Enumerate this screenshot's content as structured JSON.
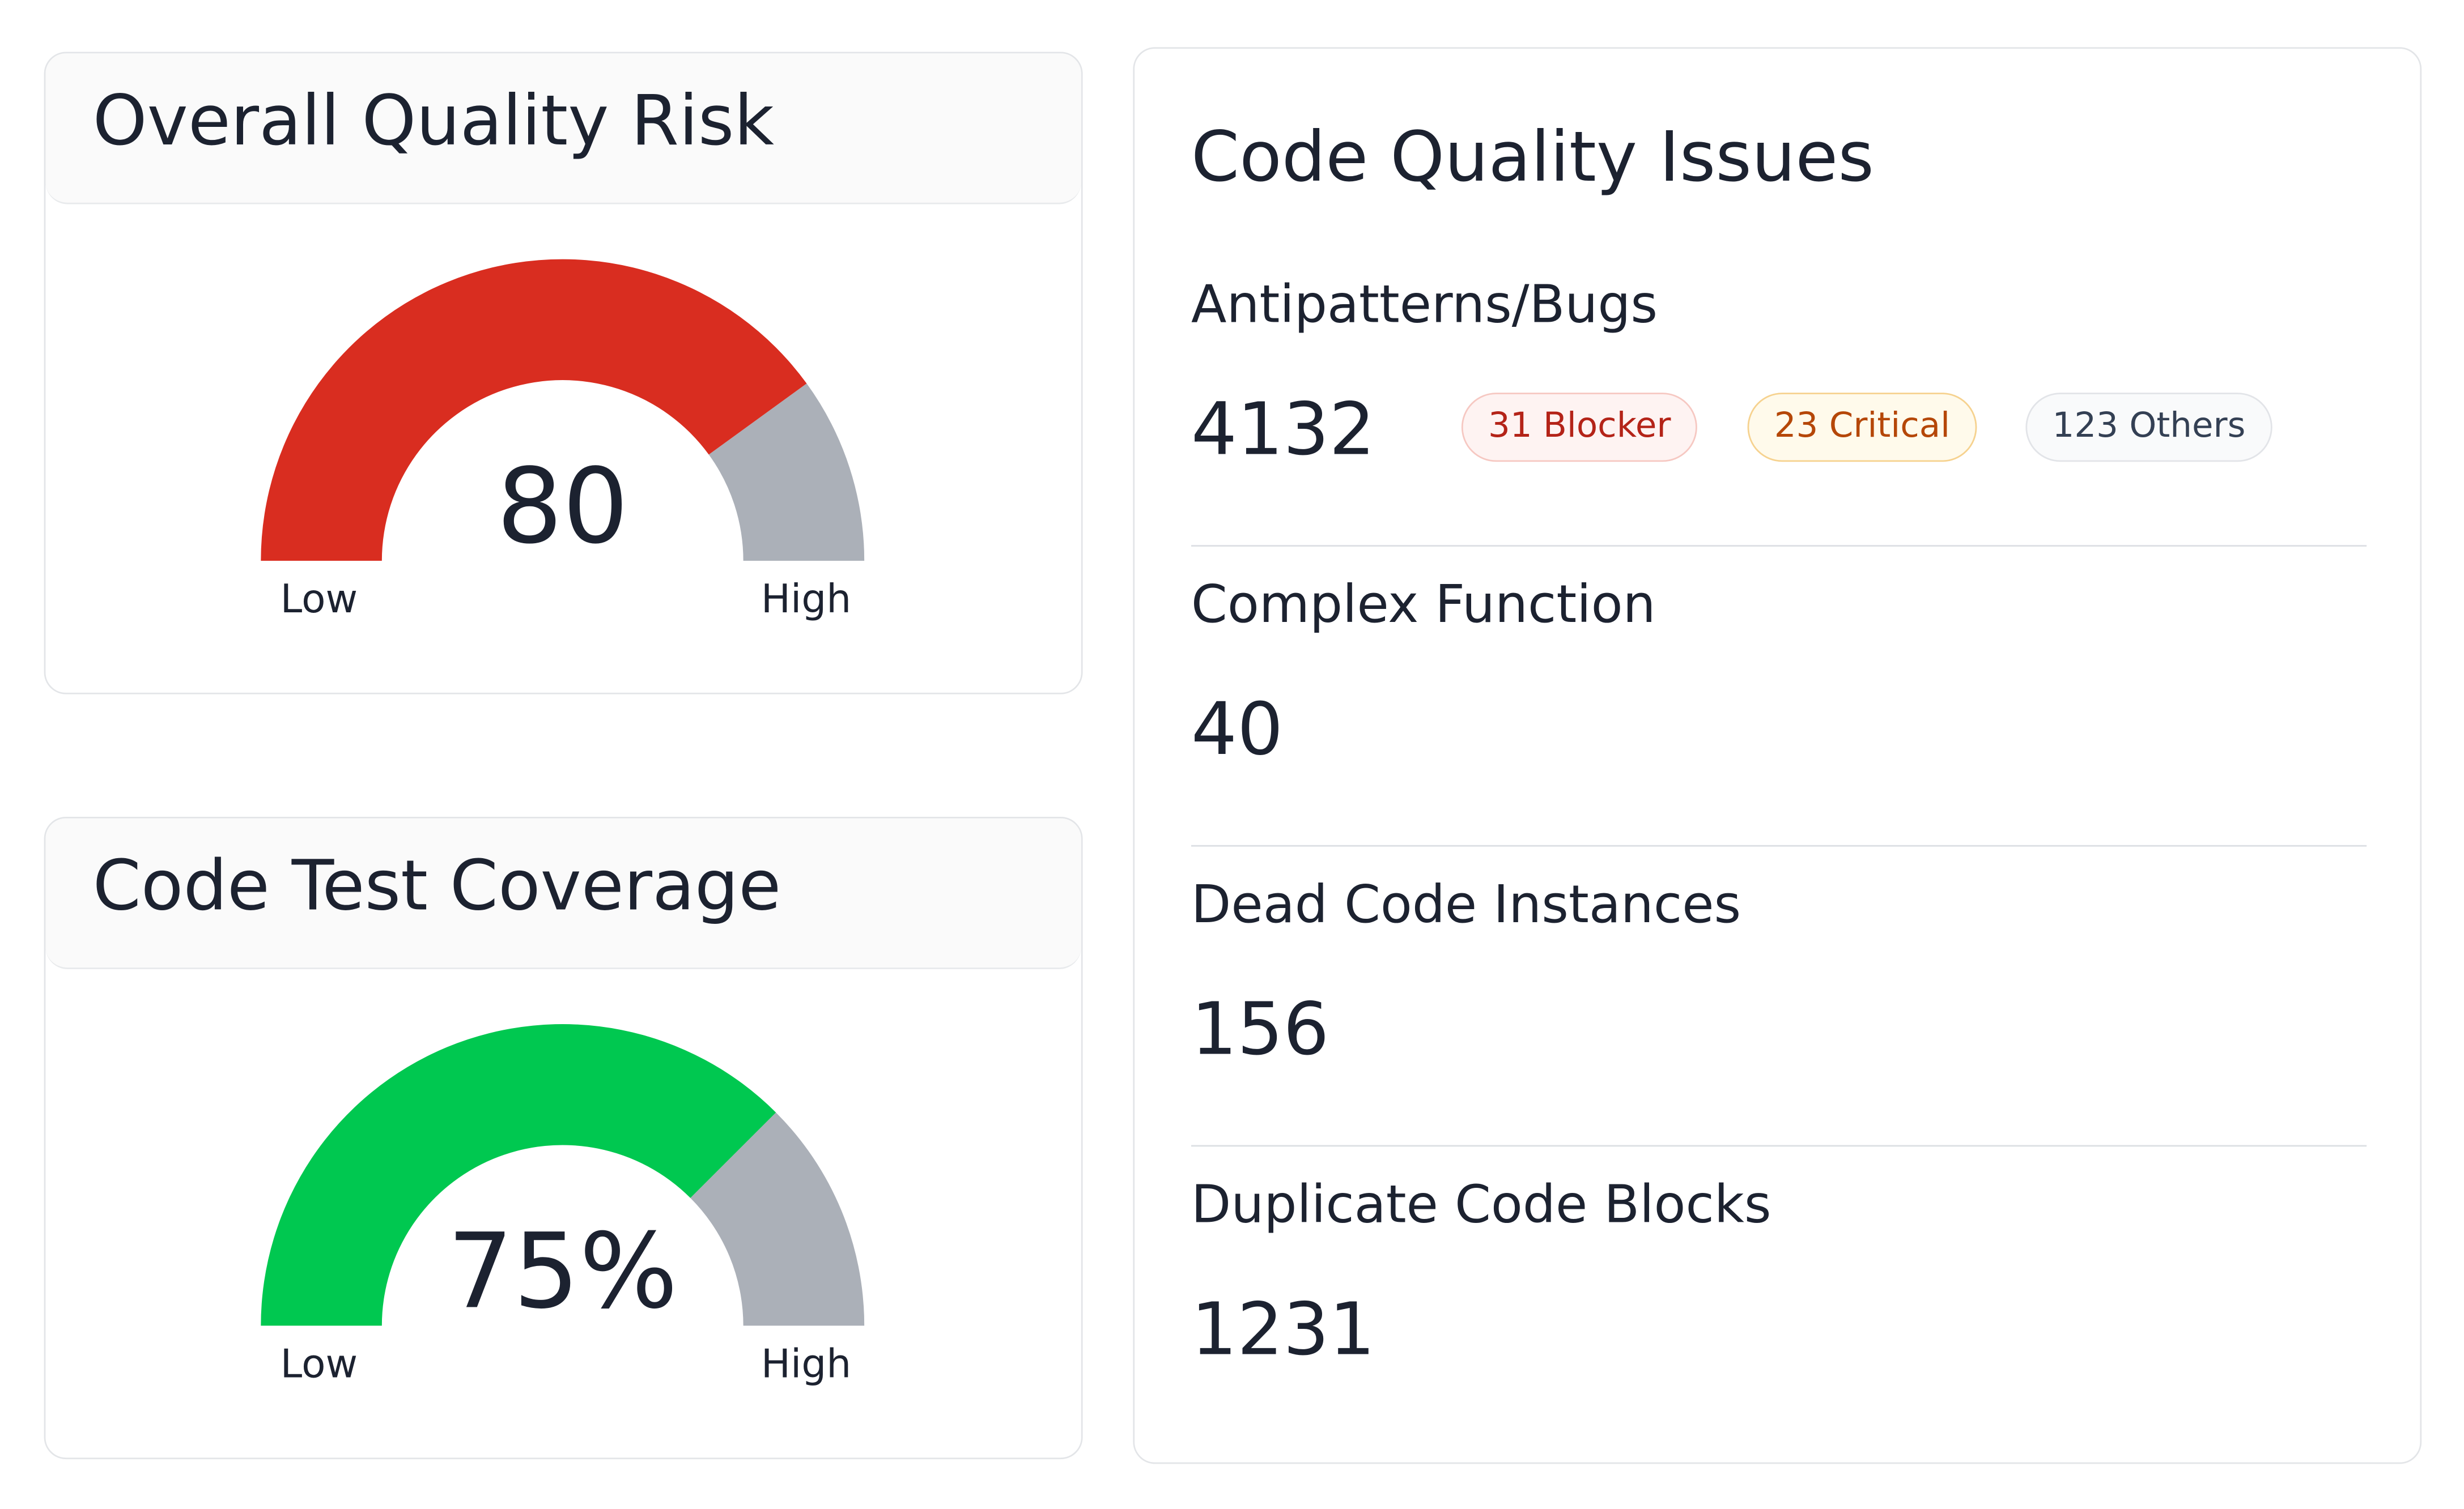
{
  "gauges": [
    {
      "type": "gauge",
      "title": "Overall Quality Risk",
      "value": 80,
      "lim": [
        0,
        100
      ],
      "color": "#d92d20",
      "rest_color": "#abb0b8",
      "low_label": "Low",
      "high_label": "High"
    },
    {
      "type": "gauge",
      "title": "Code Test Coverage",
      "value": 75,
      "value_label": "75%",
      "lim": [
        0,
        100
      ],
      "color": "#00c850",
      "rest_color": "#abb0b8",
      "low_label": "Low",
      "high_label": "High"
    }
  ],
  "issues": {
    "title": "Code Quality Issues",
    "sections": [
      {
        "label": "Antipatterns/Bugs",
        "value": 4132,
        "badges": [
          "31 Blocker",
          "23 Critical",
          "123 Others"
        ]
      },
      {
        "label": "Complex Function",
        "value": 40
      },
      {
        "label": "Dead Code Instances",
        "value": 156
      },
      {
        "label": "Duplicate Code Blocks",
        "value": 1231
      }
    ]
  }
}
